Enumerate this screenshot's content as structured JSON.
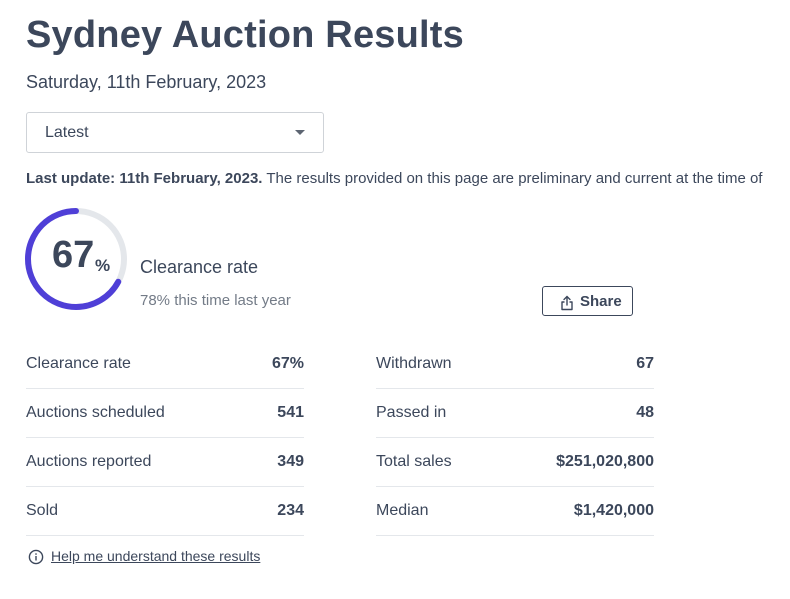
{
  "header": {
    "title": "Sydney Auction Results",
    "date": "Saturday, 11th February, 2023"
  },
  "filter": {
    "selected": "Latest"
  },
  "notice": {
    "bold": "Last update: 11th February, 2023.",
    "text": " The results provided on this page are preliminary and current at the time of"
  },
  "clearance": {
    "value": "67",
    "unit": "%",
    "fraction": 0.67,
    "label": "Clearance rate",
    "comparison": "78% this time last year"
  },
  "share": {
    "label": "Share"
  },
  "stats": {
    "left": [
      {
        "label": "Clearance rate",
        "value": "67%"
      },
      {
        "label": "Auctions scheduled",
        "value": "541"
      },
      {
        "label": "Auctions reported",
        "value": "349"
      },
      {
        "label": "Sold",
        "value": "234"
      }
    ],
    "right": [
      {
        "label": "Withdrawn",
        "value": "67"
      },
      {
        "label": "Passed in",
        "value": "48"
      },
      {
        "label": "Total sales",
        "value": "$251,020,800"
      },
      {
        "label": "Median",
        "value": "$1,420,000"
      }
    ]
  },
  "help": {
    "label": "Help me understand these results"
  },
  "colors": {
    "accent": "#4f3fd7",
    "track": "#e4e7eb",
    "text": "#3c475b",
    "muted": "#737b87"
  },
  "icons": {
    "dropdown": "caret-down-icon",
    "share": "share-icon",
    "help": "info-icon"
  }
}
